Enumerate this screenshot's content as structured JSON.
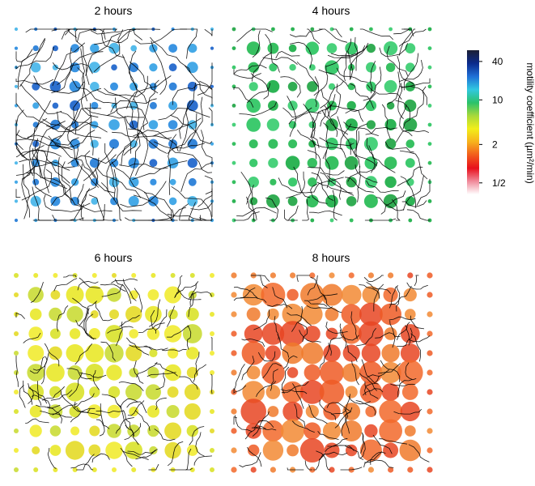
{
  "chart_data": [
    {
      "type": "scatter",
      "title": "2 hours",
      "description_color": "#3aa3e0",
      "marker_scale": "small",
      "xlabel": "",
      "ylabel": ""
    },
    {
      "type": "scatter",
      "title": "4 hours",
      "description_color": "#2ebd5a",
      "marker_scale": "medium",
      "xlabel": "",
      "ylabel": ""
    },
    {
      "type": "scatter",
      "title": "6 hours",
      "description_color": "#e6e21a",
      "marker_scale": "large",
      "xlabel": "",
      "ylabel": ""
    },
    {
      "type": "scatter",
      "title": "8 hours",
      "description_color": "#f07a2c",
      "marker_scale": "largest",
      "xlabel": "",
      "ylabel": ""
    }
  ],
  "colorbar": {
    "label": "motility coefficient (µm²/min)",
    "scale": "log",
    "range": [
      0.33,
      60
    ],
    "ticks": [
      {
        "value": 40,
        "label": "40"
      },
      {
        "value": 10,
        "label": "10"
      },
      {
        "value": 2,
        "label": "2"
      },
      {
        "value": 0.5,
        "label": "1/2"
      }
    ],
    "colors": [
      "#1c1f33",
      "#0b2a8c",
      "#1f6fd6",
      "#31c8e0",
      "#2bc26a",
      "#a8d93a",
      "#f2ee1a",
      "#f7b21c",
      "#f25c1c",
      "#e8101c",
      "#f08a9a",
      "#ffffff"
    ]
  }
}
